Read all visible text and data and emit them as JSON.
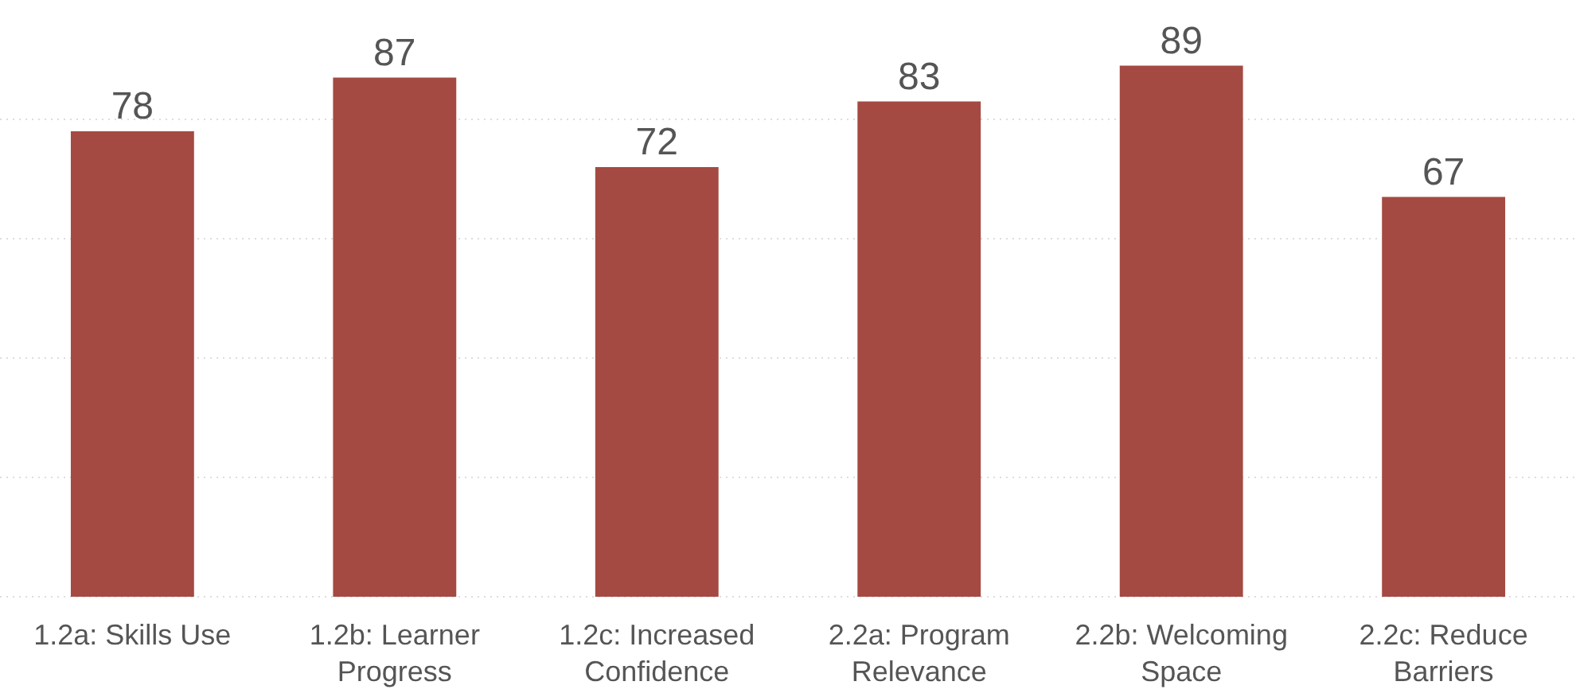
{
  "chart_data": {
    "type": "bar",
    "categories": [
      "1.2a: Skills Use",
      "1.2b: Learner Progress",
      "1.2c: Increased Confidence",
      "2.2a: Program Relevance",
      "2.2b: Welcoming Space",
      "2.2c: Reduce Barriers"
    ],
    "values": [
      78,
      87,
      72,
      83,
      89,
      67
    ],
    "color": "#a44a42",
    "data_labels": true,
    "ylim": [
      0,
      100
    ],
    "yticks": [
      {
        "value": 0,
        "label": null
      },
      {
        "value": 20,
        "label": null
      },
      {
        "value": 40,
        "label": null
      },
      {
        "value": 60,
        "label": null
      },
      {
        "value": 80,
        "label": null
      }
    ],
    "grid": "y",
    "tick_labels": "x"
  }
}
